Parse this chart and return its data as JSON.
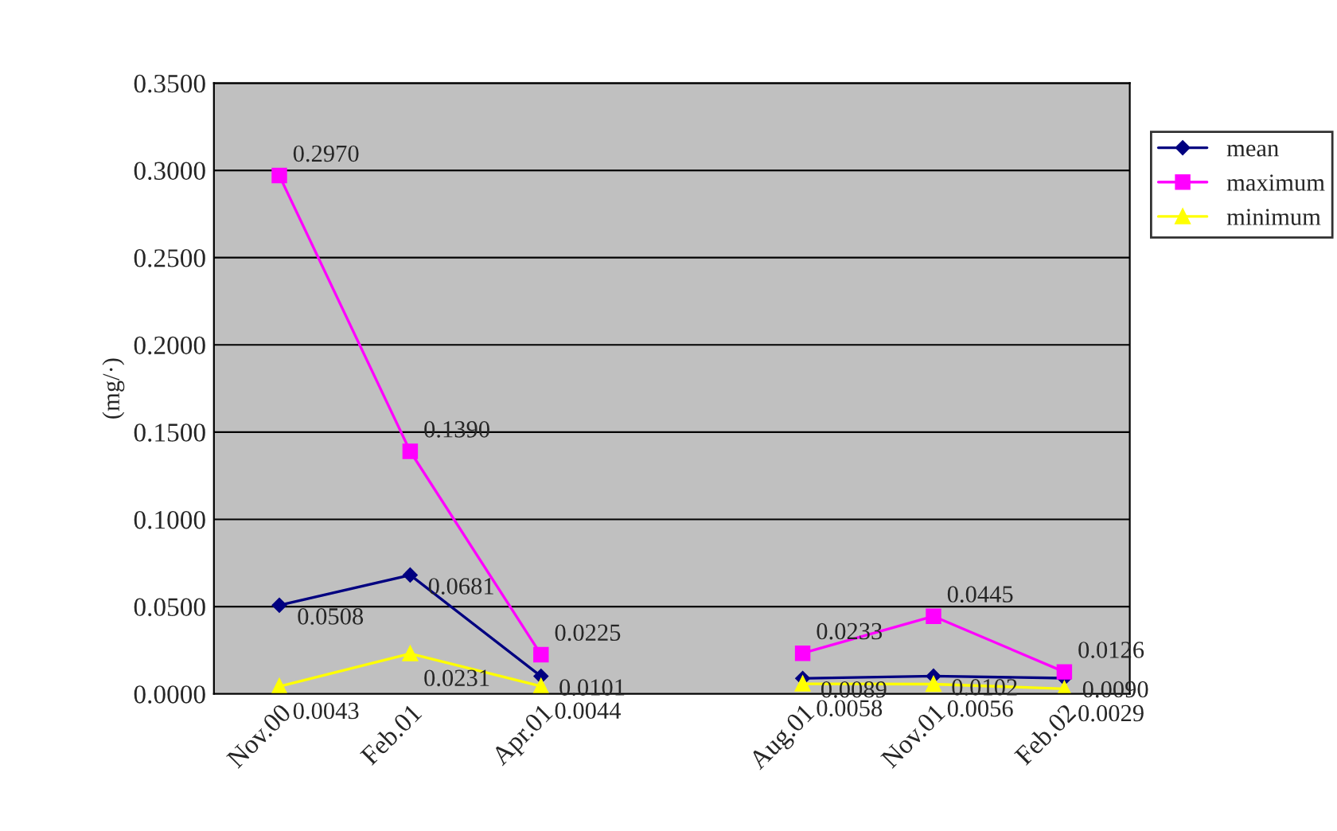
{
  "chart_data": {
    "type": "line",
    "ylabel": "(mg/·)",
    "categories": [
      "Nov.00",
      "Feb.01",
      "Apr.01",
      null,
      "Aug.01",
      "Nov.01",
      "Feb.02"
    ],
    "series": [
      {
        "name": "mean",
        "color": "#000080",
        "marker": "diamond",
        "values": [
          0.0508,
          0.0681,
          0.0101,
          null,
          0.0089,
          0.0102,
          0.009
        ],
        "value_labels": [
          "0.0508",
          "0.0681",
          "0.0101",
          null,
          "0.0089",
          "0.0102",
          "0.0090"
        ]
      },
      {
        "name": "maximum",
        "color": "#ff00ff",
        "marker": "square",
        "values": [
          0.297,
          0.139,
          0.0225,
          null,
          0.0233,
          0.0445,
          0.0126
        ],
        "value_labels": [
          "0.2970",
          "0.1390",
          "0.0225",
          null,
          "0.0233",
          "0.0445",
          "0.0126"
        ]
      },
      {
        "name": "minimum",
        "color": "#ffff00",
        "marker": "triangle",
        "values": [
          0.0043,
          0.0231,
          0.0044,
          null,
          0.0058,
          0.0056,
          0.0029
        ],
        "value_labels": [
          "0.0043",
          "0.0231",
          "0.0044",
          null,
          "0.0058",
          "0.0056",
          "0.0029"
        ]
      }
    ],
    "ylim": [
      0,
      0.35
    ],
    "yticks": [
      {
        "value": 0,
        "label": "0.0000"
      },
      {
        "value": 0.05,
        "label": "0.0500"
      },
      {
        "value": 0.1,
        "label": "0.1000"
      },
      {
        "value": 0.15,
        "label": "0.1500"
      },
      {
        "value": 0.2,
        "label": "0.2000"
      },
      {
        "value": 0.25,
        "label": "0.2500"
      },
      {
        "value": 0.3,
        "label": "0.3000"
      },
      {
        "value": 0.35,
        "label": "0.3500"
      }
    ],
    "grid": "y",
    "legend": "top right",
    "line_style": "solid"
  }
}
